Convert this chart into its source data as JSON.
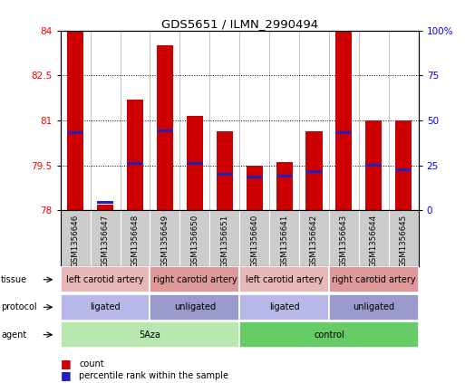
{
  "title": "GDS5651 / ILMN_2990494",
  "samples": [
    "GSM1356646",
    "GSM1356647",
    "GSM1356648",
    "GSM1356649",
    "GSM1356650",
    "GSM1356651",
    "GSM1356640",
    "GSM1356641",
    "GSM1356642",
    "GSM1356643",
    "GSM1356644",
    "GSM1356645"
  ],
  "red_values": [
    83.95,
    78.2,
    81.7,
    83.5,
    81.15,
    80.65,
    79.5,
    79.6,
    80.65,
    83.95,
    81.0,
    81.0
  ],
  "blue_values": [
    80.6,
    78.25,
    79.55,
    80.65,
    79.55,
    79.2,
    79.1,
    79.15,
    79.3,
    80.6,
    79.5,
    79.35
  ],
  "ylim_left": [
    78,
    84
  ],
  "ylim_right": [
    0,
    100
  ],
  "yticks_left": [
    78,
    79.5,
    81,
    82.5,
    84
  ],
  "yticks_right": [
    0,
    25,
    50,
    75,
    100
  ],
  "red_color": "#cc0000",
  "blue_color": "#2222bb",
  "bar_width": 0.55,
  "agent_groups": [
    {
      "label": "5Aza",
      "span": [
        0,
        6
      ],
      "color": "#b8e8b0"
    },
    {
      "label": "control",
      "span": [
        6,
        12
      ],
      "color": "#66cc66"
    }
  ],
  "protocol_groups": [
    {
      "label": "ligated",
      "span": [
        0,
        3
      ],
      "color": "#b8b8e8"
    },
    {
      "label": "unligated",
      "span": [
        3,
        6
      ],
      "color": "#9999cc"
    },
    {
      "label": "ligated",
      "span": [
        6,
        9
      ],
      "color": "#b8b8e8"
    },
    {
      "label": "unligated",
      "span": [
        9,
        12
      ],
      "color": "#9999cc"
    }
  ],
  "tissue_groups": [
    {
      "label": "left carotid artery",
      "span": [
        0,
        3
      ],
      "color": "#e8b8b8"
    },
    {
      "label": "right carotid artery",
      "span": [
        3,
        6
      ],
      "color": "#dd9999"
    },
    {
      "label": "left carotid artery",
      "span": [
        6,
        9
      ],
      "color": "#e8b8b8"
    },
    {
      "label": "right carotid artery",
      "span": [
        9,
        12
      ],
      "color": "#dd9999"
    }
  ],
  "row_labels": [
    "agent",
    "protocol",
    "tissue"
  ],
  "sample_bg": "#cccccc",
  "bg_color": "#ffffff"
}
